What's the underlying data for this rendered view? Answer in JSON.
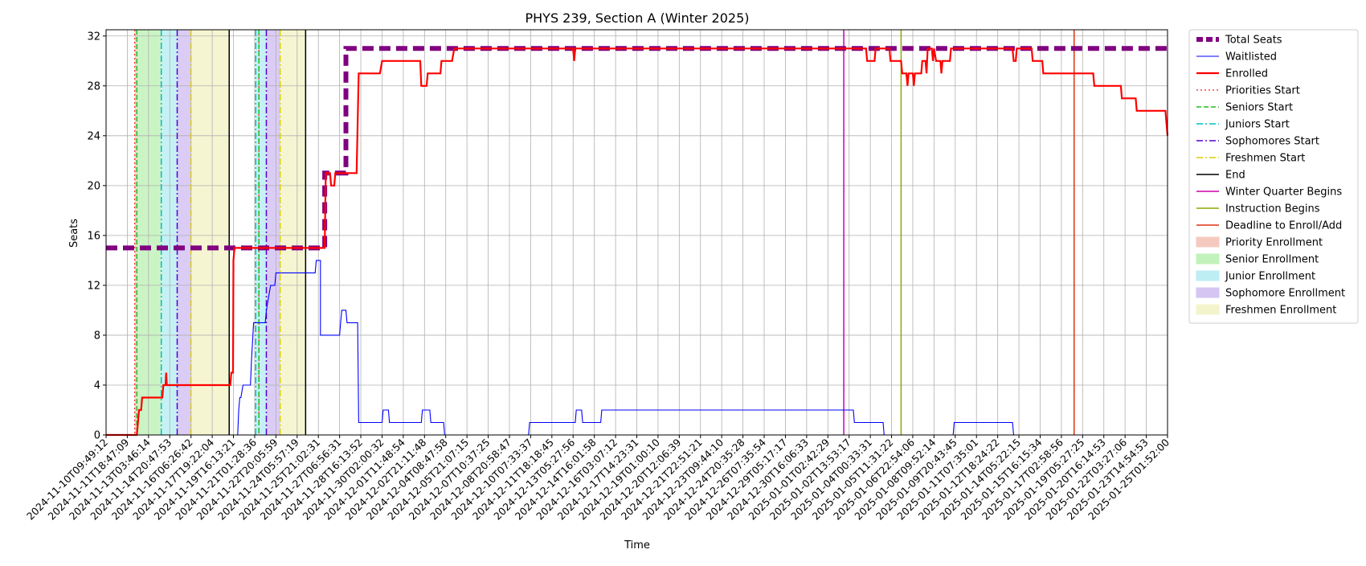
{
  "chart_data": {
    "type": "line",
    "title": "PHYS 239, Section A (Winter 2025)",
    "xlabel": "Time",
    "ylabel": "Seats",
    "ylim": [
      0,
      32.5
    ],
    "yticks": [
      0,
      4,
      8,
      12,
      16,
      20,
      24,
      28,
      32
    ],
    "grid": true,
    "legend_position": "outside-right",
    "xlim": [
      "2024-11-10T09:49:12",
      "2025-01-25T01:52:00"
    ],
    "xtick_labels": [
      "2024-11-10T09:49:12",
      "2024-11-11T18:47:09",
      "2024-11-13T03:46:14",
      "2024-11-14T20:47:53",
      "2024-11-16T06:26:42",
      "2024-11-17T19:22:04",
      "2024-11-19T16:13:21",
      "2024-11-21T01:28:36",
      "2024-11-22T20:05:59",
      "2024-11-24T05:57:19",
      "2024-11-25T21:02:31",
      "2024-11-27T06:56:31",
      "2024-11-28T16:13:52",
      "2024-11-30T02:00:32",
      "2024-12-01T11:48:54",
      "2024-12-02T21:11:48",
      "2024-12-04T08:47:58",
      "2024-12-05T21:07:15",
      "2024-12-07T10:37:25",
      "2024-12-08T20:58:47",
      "2024-12-10T07:33:37",
      "2024-12-11T18:18:45",
      "2024-12-13T05:27:56",
      "2024-12-14T16:01:58",
      "2024-12-16T03:07:12",
      "2024-12-17T14:23:31",
      "2024-12-19T01:00:10",
      "2024-12-20T12:06:39",
      "2024-12-21T22:51:21",
      "2024-12-23T09:44:10",
      "2024-12-24T20:35:28",
      "2024-12-26T07:35:54",
      "2024-12-29T05:17:17",
      "2024-12-30T16:06:33",
      "2025-01-01T02:42:29",
      "2025-01-02T13:53:17",
      "2025-01-04T00:33:31",
      "2025-01-05T11:31:22",
      "2025-01-06T22:54:06",
      "2025-01-08T09:52:14",
      "2025-01-09T20:43:45",
      "2025-01-11T07:35:01",
      "2025-01-12T18:24:22",
      "2025-01-14T05:22:15",
      "2025-01-15T16:15:34",
      "2025-01-17T02:58:56",
      "2025-01-19T05:27:25",
      "2025-01-20T16:14:53",
      "2025-01-22T03:27:06",
      "2025-01-23T14:54:53",
      "2025-01-25T01:52:00"
    ],
    "x_index_note_free": true,
    "series": [
      {
        "name": "Total Seats",
        "color": "#800080",
        "style": "dashed-thick",
        "points": [
          [
            0,
            15
          ],
          [
            10.3,
            15
          ],
          [
            10.3,
            21
          ],
          [
            11.3,
            21
          ],
          [
            11.3,
            31
          ],
          [
            50,
            31
          ]
        ]
      },
      {
        "name": "Waitlisted",
        "color": "#0000ff",
        "style": "solid-thin",
        "points": [
          [
            0,
            0
          ],
          [
            6.2,
            0
          ],
          [
            6.25,
            2
          ],
          [
            6.3,
            3
          ],
          [
            6.35,
            3
          ],
          [
            6.45,
            4
          ],
          [
            6.8,
            4
          ],
          [
            6.85,
            6
          ],
          [
            6.95,
            9
          ],
          [
            7.5,
            9
          ],
          [
            7.55,
            10
          ],
          [
            7.65,
            11
          ],
          [
            7.75,
            12
          ],
          [
            7.95,
            12
          ],
          [
            8.0,
            13
          ],
          [
            9.85,
            13
          ],
          [
            9.9,
            14
          ],
          [
            10.1,
            14
          ],
          [
            10.1,
            8
          ],
          [
            11.0,
            8
          ],
          [
            11.05,
            9
          ],
          [
            11.1,
            10
          ],
          [
            11.3,
            10
          ],
          [
            11.35,
            9
          ],
          [
            11.85,
            9
          ],
          [
            11.9,
            1
          ],
          [
            13.0,
            1
          ],
          [
            13.05,
            2
          ],
          [
            13.3,
            2
          ],
          [
            13.35,
            1
          ],
          [
            14.85,
            1
          ],
          [
            14.9,
            2
          ],
          [
            15.25,
            2
          ],
          [
            15.3,
            1
          ],
          [
            15.9,
            1
          ],
          [
            15.95,
            0
          ],
          [
            19.9,
            0
          ],
          [
            19.95,
            1
          ],
          [
            22.1,
            1
          ],
          [
            22.15,
            2
          ],
          [
            22.4,
            2
          ],
          [
            22.45,
            1
          ],
          [
            23.3,
            1
          ],
          [
            23.35,
            2
          ],
          [
            35.2,
            2
          ],
          [
            35.25,
            1
          ],
          [
            36.6,
            1
          ],
          [
            36.65,
            0
          ],
          [
            39.9,
            0
          ],
          [
            39.95,
            1
          ],
          [
            42.7,
            1
          ],
          [
            42.75,
            0
          ],
          [
            50,
            0
          ]
        ]
      },
      {
        "name": "Enrolled",
        "color": "#ff0000",
        "style": "solid-thick",
        "points": [
          [
            0,
            0
          ],
          [
            1.45,
            0
          ],
          [
            1.55,
            2
          ],
          [
            1.65,
            2
          ],
          [
            1.7,
            3
          ],
          [
            2.65,
            3
          ],
          [
            2.7,
            4
          ],
          [
            2.8,
            4
          ],
          [
            2.83,
            5
          ],
          [
            2.86,
            4
          ],
          [
            5.85,
            4
          ],
          [
            5.9,
            5
          ],
          [
            5.98,
            5
          ],
          [
            6.0,
            14
          ],
          [
            6.05,
            15
          ],
          [
            9.4,
            15
          ],
          [
            9.5,
            15
          ],
          [
            10.3,
            15
          ],
          [
            10.35,
            21
          ],
          [
            10.4,
            21
          ],
          [
            10.45,
            21
          ],
          [
            10.55,
            21
          ],
          [
            10.6,
            20
          ],
          [
            10.75,
            20
          ],
          [
            10.8,
            21
          ],
          [
            11.0,
            21
          ],
          [
            11.8,
            21
          ],
          [
            11.9,
            29
          ],
          [
            12.0,
            29
          ],
          [
            12.9,
            29
          ],
          [
            13.0,
            30
          ],
          [
            14.3,
            30
          ],
          [
            14.8,
            30
          ],
          [
            14.85,
            28
          ],
          [
            15.1,
            28
          ],
          [
            15.15,
            29
          ],
          [
            15.75,
            29
          ],
          [
            15.8,
            30
          ],
          [
            16.3,
            30
          ],
          [
            16.4,
            31
          ],
          [
            22.0,
            31
          ],
          [
            22.05,
            30
          ],
          [
            22.1,
            31
          ],
          [
            35.8,
            31
          ],
          [
            35.85,
            30
          ],
          [
            36.2,
            30
          ],
          [
            36.25,
            31
          ],
          [
            36.9,
            31
          ],
          [
            36.95,
            30
          ],
          [
            37.45,
            30
          ],
          [
            37.5,
            29
          ],
          [
            37.7,
            29
          ],
          [
            37.75,
            28
          ],
          [
            37.8,
            29
          ],
          [
            38.0,
            29
          ],
          [
            38.05,
            28
          ],
          [
            38.1,
            29
          ],
          [
            38.4,
            29
          ],
          [
            38.45,
            30
          ],
          [
            38.6,
            30
          ],
          [
            38.65,
            29
          ],
          [
            38.7,
            31
          ],
          [
            38.9,
            31
          ],
          [
            38.95,
            30
          ],
          [
            39.0,
            31
          ],
          [
            39.1,
            30
          ],
          [
            39.3,
            30
          ],
          [
            39.35,
            29
          ],
          [
            39.4,
            30
          ],
          [
            39.75,
            30
          ],
          [
            39.8,
            31
          ],
          [
            42.7,
            31
          ],
          [
            42.75,
            30
          ],
          [
            42.85,
            30
          ],
          [
            42.9,
            31
          ],
          [
            43.6,
            31
          ],
          [
            43.65,
            30
          ],
          [
            44.1,
            30
          ],
          [
            44.15,
            29
          ],
          [
            46.5,
            29
          ],
          [
            46.55,
            28
          ],
          [
            47.8,
            28
          ],
          [
            47.85,
            27
          ],
          [
            48.5,
            27
          ],
          [
            48.55,
            26
          ],
          [
            49.9,
            26
          ],
          [
            50,
            24
          ]
        ]
      }
    ],
    "vertical_lines": [
      {
        "name": "Priorities Start",
        "color": "#ff4040",
        "style": "dotted",
        "x": [
          1.35,
          7.2
        ]
      },
      {
        "name": "Seniors Start",
        "color": "#22bb22",
        "style": "dashed",
        "x": [
          1.45,
          7.2
        ]
      },
      {
        "name": "Juniors Start",
        "color": "#00bfbf",
        "style": "dashdot",
        "x": [
          2.6,
          7.05
        ]
      },
      {
        "name": "Sophomores Start",
        "color": "#5500cc",
        "style": "dashdot",
        "x": [
          3.35,
          7.55
        ]
      },
      {
        "name": "Freshmen Start",
        "color": "#ddcc00",
        "style": "dashdot",
        "x": [
          4.0,
          8.2
        ]
      },
      {
        "name": "End",
        "color": "#000000",
        "style": "solid",
        "x": [
          5.8,
          9.4
        ]
      },
      {
        "name": "Winter Quarter Begins",
        "color": "#cc00aa",
        "style": "solid",
        "x": [
          34.75
        ]
      },
      {
        "name": "Instruction Begins",
        "color": "#88aa00",
        "style": "solid",
        "x": [
          37.45
        ]
      },
      {
        "name": "Deadline to Enroll/Add",
        "color": "#dd3311",
        "style": "solid",
        "x": [
          45.6
        ]
      }
    ],
    "shaded_regions": [
      {
        "name": "Priority Enrollment",
        "color": "#f4c1b3",
        "spans": [
          [
            1.35,
            1.45
          ],
          [
            7.05,
            7.05
          ]
        ]
      },
      {
        "name": "Senior Enrollment",
        "color": "#b8f0b0",
        "spans": [
          [
            1.45,
            2.6
          ]
        ]
      },
      {
        "name": "Junior Enrollment",
        "color": "#b2ecf2",
        "spans": [
          [
            2.6,
            3.35
          ],
          [
            7.05,
            7.55
          ]
        ]
      },
      {
        "name": "Sophomore Enrollment",
        "color": "#cdbbf0",
        "spans": [
          [
            3.35,
            4.0
          ],
          [
            7.55,
            8.2
          ]
        ]
      },
      {
        "name": "Freshmen Enrollment",
        "color": "#f2f3c2",
        "spans": [
          [
            4.0,
            5.8
          ],
          [
            8.2,
            9.4
          ]
        ]
      }
    ],
    "legend": [
      {
        "label": "Total Seats",
        "kind": "line",
        "color": "#800080",
        "style": "dashed-thick"
      },
      {
        "label": "Waitlisted",
        "kind": "line",
        "color": "#0000ff",
        "style": "solid-thin"
      },
      {
        "label": "Enrolled",
        "kind": "line",
        "color": "#ff0000",
        "style": "solid-thick"
      },
      {
        "label": "Priorities Start",
        "kind": "line",
        "color": "#ff4040",
        "style": "dotted"
      },
      {
        "label": "Seniors Start",
        "kind": "line",
        "color": "#22bb22",
        "style": "dashed"
      },
      {
        "label": "Juniors Start",
        "kind": "line",
        "color": "#00bfbf",
        "style": "dashdot"
      },
      {
        "label": "Sophomores Start",
        "kind": "line",
        "color": "#5500cc",
        "style": "dashdot"
      },
      {
        "label": "Freshmen Start",
        "kind": "line",
        "color": "#ddcc00",
        "style": "dashdot"
      },
      {
        "label": "End",
        "kind": "line",
        "color": "#000000",
        "style": "solid"
      },
      {
        "label": "Winter Quarter Begins",
        "kind": "line",
        "color": "#cc00aa",
        "style": "solid"
      },
      {
        "label": "Instruction Begins",
        "kind": "line",
        "color": "#88aa00",
        "style": "solid"
      },
      {
        "label": "Deadline to Enroll/Add",
        "kind": "line",
        "color": "#dd3311",
        "style": "solid"
      },
      {
        "label": "Priority Enrollment",
        "kind": "patch",
        "color": "#f4c1b3"
      },
      {
        "label": "Senior Enrollment",
        "kind": "patch",
        "color": "#b8f0b0"
      },
      {
        "label": "Junior Enrollment",
        "kind": "patch",
        "color": "#b2ecf2"
      },
      {
        "label": "Sophomore Enrollment",
        "kind": "patch",
        "color": "#cdbbf0"
      },
      {
        "label": "Freshmen Enrollment",
        "kind": "patch",
        "color": "#f2f3c2"
      }
    ]
  }
}
